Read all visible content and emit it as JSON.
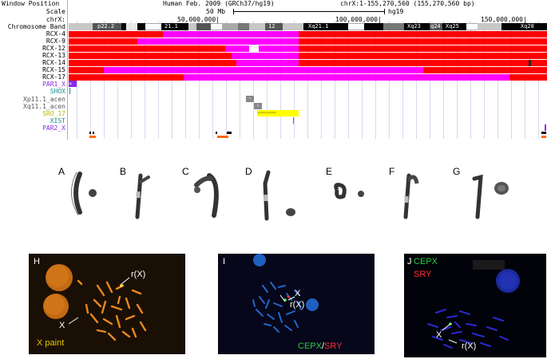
{
  "browser": {
    "header_left": "Window Position",
    "title": "Human Feb. 2009 (GRCh37/hg19)",
    "position": "chrX:1-155,270,560 (155,270,560 bp)",
    "scale_label": "Scale",
    "scale_value": "50 Mb",
    "scale_assembly": "hg19",
    "chrx_label": "chrX:",
    "ticks": [
      "50,000,000|",
      "100,000,000|",
      "150,000,000|"
    ],
    "chromosome_band_label": "Chromosome Band",
    "bands": [
      "p22.2",
      "21.1",
      "12",
      "Xq21.1",
      "Xq23",
      "q24",
      "Xq25",
      "Xq28"
    ],
    "tracks": [
      {
        "label": "RCX-4"
      },
      {
        "label": "RCX-9"
      },
      {
        "label": "RCX-12"
      },
      {
        "label": "RCX-13"
      },
      {
        "label": "RCX-14"
      },
      {
        "label": "RCX-15"
      },
      {
        "label": "RCX-17"
      }
    ],
    "annotations": [
      {
        "label": "PAR1_X",
        "color": "#8a2be2"
      },
      {
        "label": "SHOX",
        "color": "#1a8a8a"
      },
      {
        "label": "Xp11.1_acen",
        "color": "#555555"
      },
      {
        "label": "Xq11.1_acen",
        "color": "#555555"
      },
      {
        "label": "SRO_17",
        "color": "#b8b800"
      },
      {
        "label": "XIST",
        "color": "#1a8a8a"
      },
      {
        "label": "PAR2_X",
        "color": "#8a2be2"
      }
    ],
    "colors": {
      "red": "#ff0000",
      "magenta": "#ff00ff",
      "yellow": "#ffff00",
      "orange": "#ff6a00"
    }
  },
  "karyotype_panels": [
    "A",
    "B",
    "C",
    "D",
    "E",
    "F",
    "G"
  ],
  "fish_panels": {
    "H": {
      "letter": "H",
      "rx": "r(X)",
      "x": "X",
      "caption": "X paint"
    },
    "I": {
      "letter": "I",
      "rx": "r(X)",
      "x": "X",
      "caption_green": "CEPX",
      "caption_sep": "/",
      "caption_red": "SRY"
    },
    "J": {
      "letter": "J",
      "legend_green": "CEPX",
      "legend_red": "SRY",
      "x": "X",
      "rx": "r(X)"
    }
  }
}
